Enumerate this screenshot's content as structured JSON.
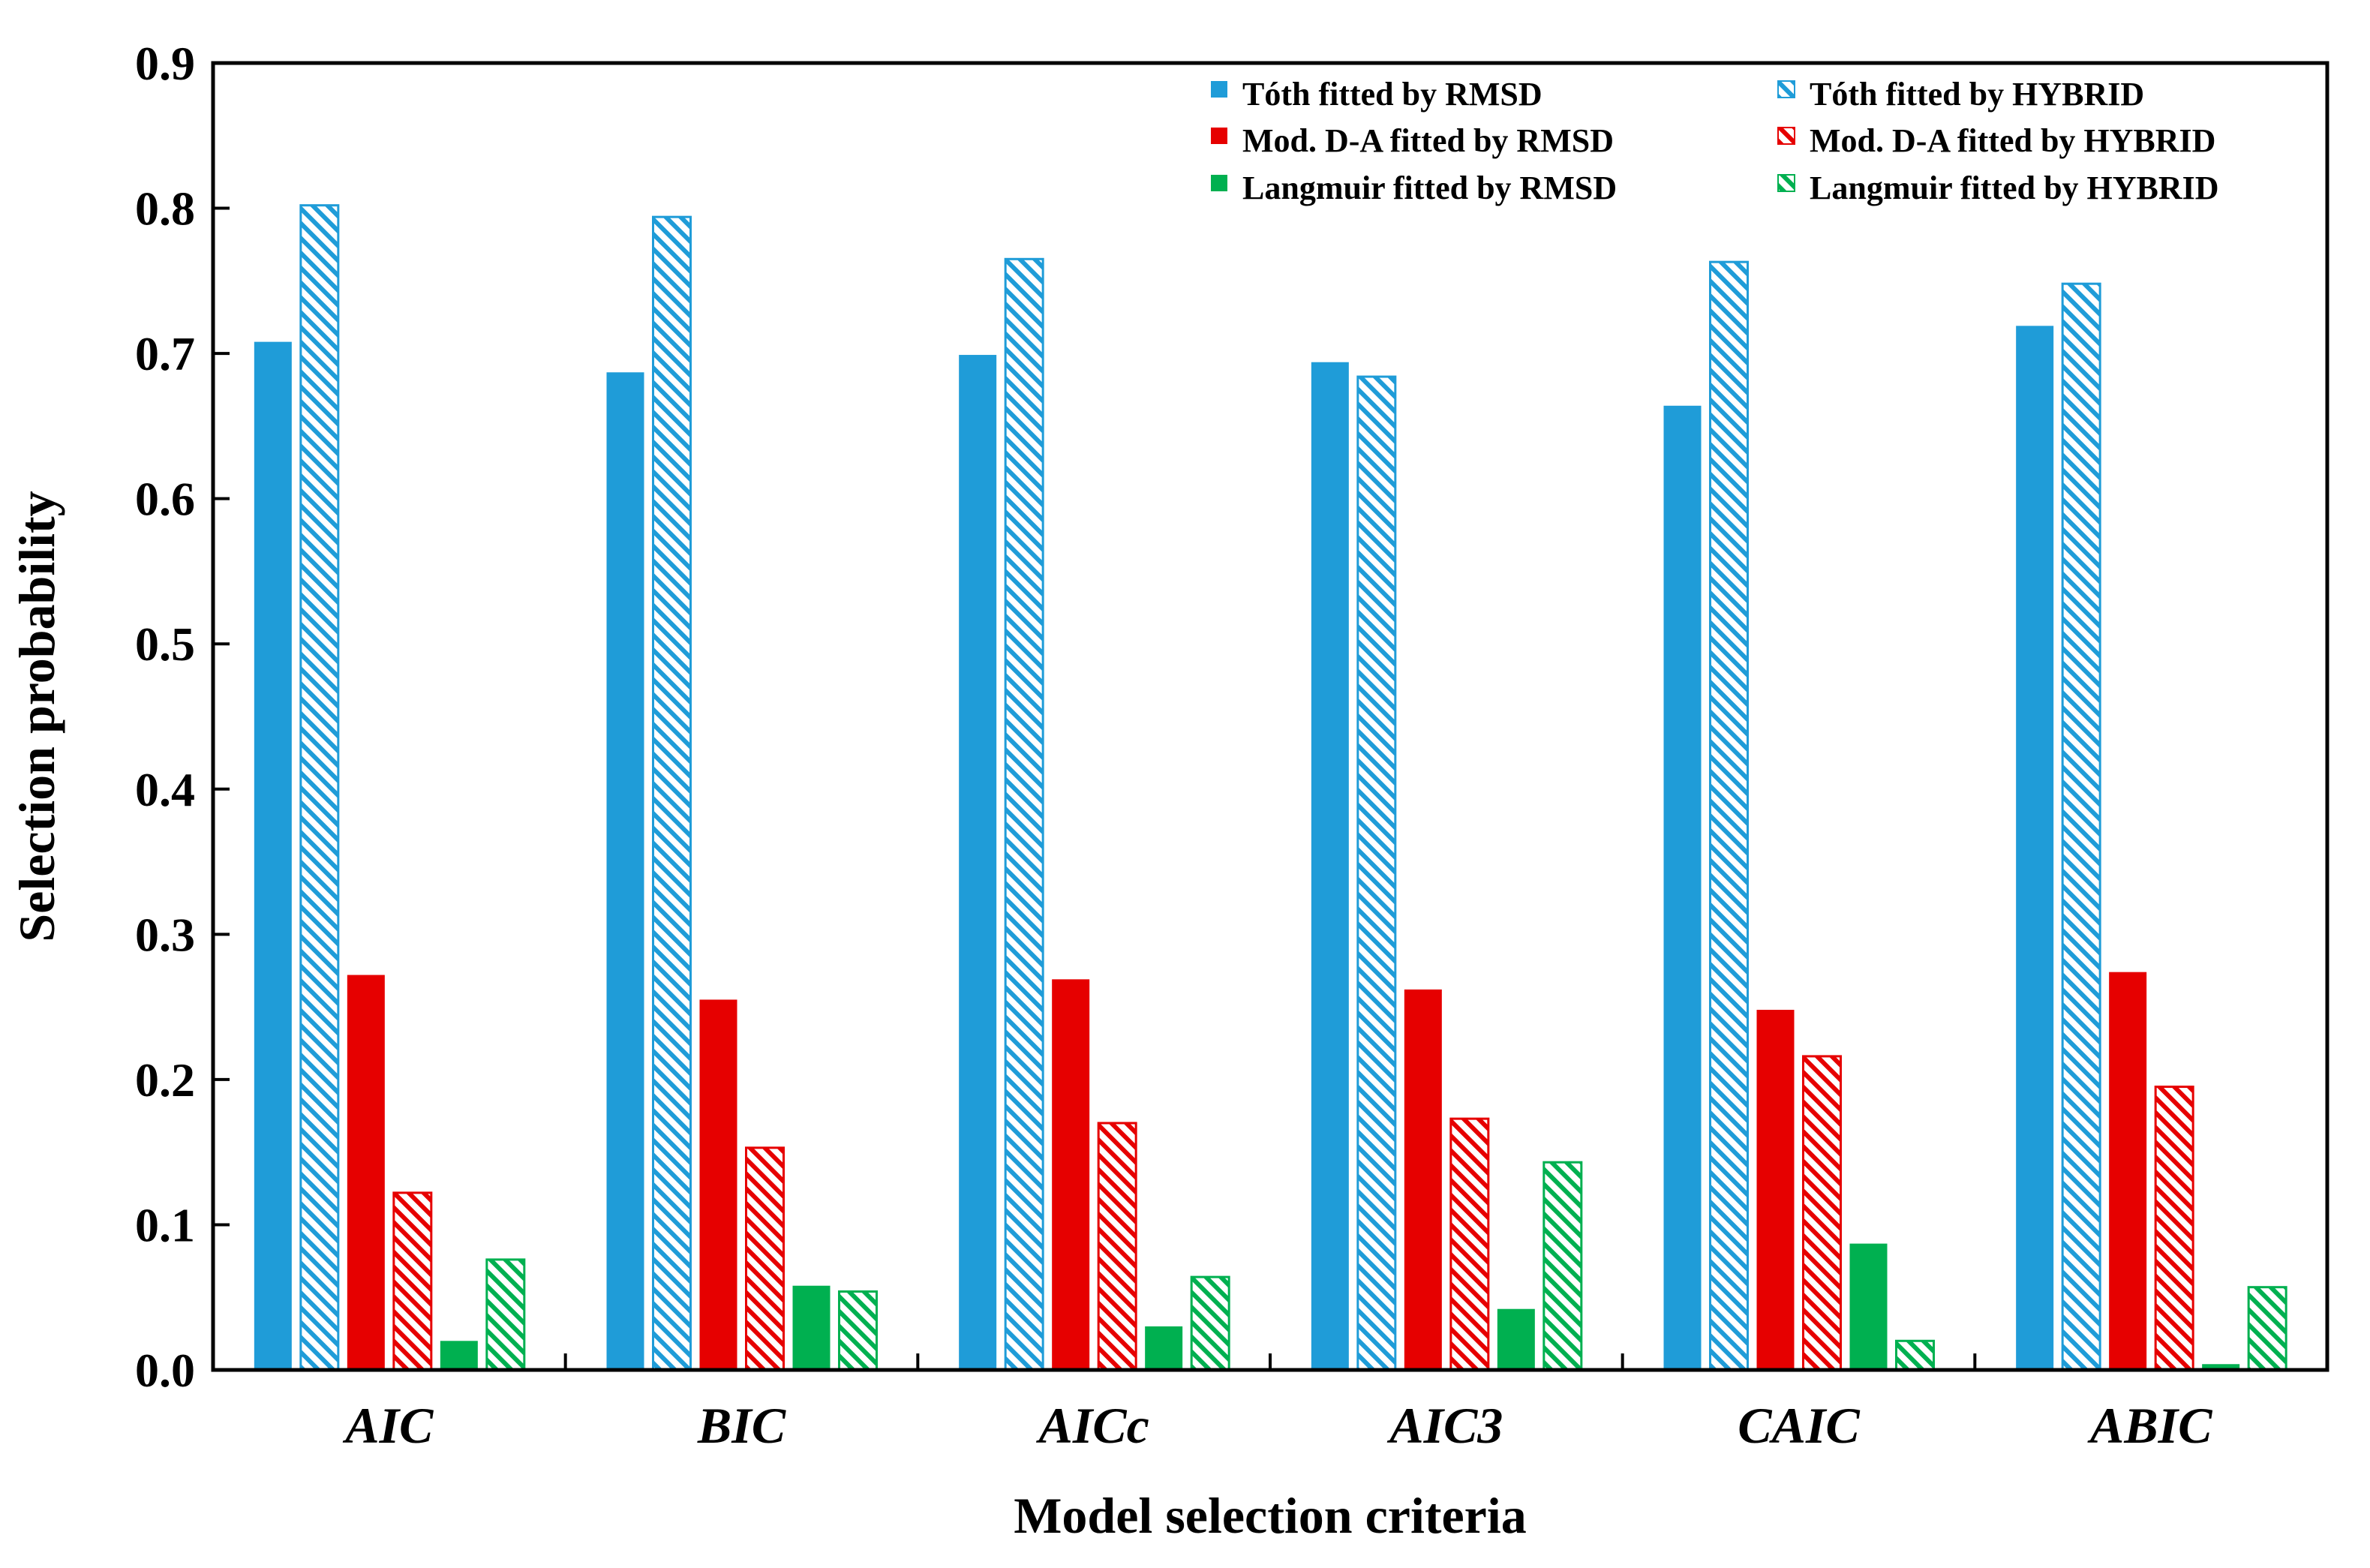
{
  "chart_data": {
    "type": "bar",
    "title": "",
    "xlabel": "Model selection criteria",
    "ylabel": "Selection probability",
    "ylim": [
      0.0,
      0.9
    ],
    "yticks": [
      "0.0",
      "0.1",
      "0.2",
      "0.3",
      "0.4",
      "0.5",
      "0.6",
      "0.7",
      "0.8",
      "0.9"
    ],
    "categories": [
      "AIC",
      "BIC",
      "AICc",
      "AIC3",
      "CAIC",
      "ABIC"
    ],
    "legend_placement": "top-right",
    "series": [
      {
        "name": "Tóth fitted by RMSD",
        "color": "#1f9cd8",
        "pattern": "solid",
        "values": [
          0.708,
          0.687,
          0.699,
          0.694,
          0.664,
          0.719
        ]
      },
      {
        "name": "Tóth fitted by HYBRID",
        "color": "#1f9cd8",
        "pattern": "hatched",
        "values": [
          0.802,
          0.794,
          0.765,
          0.684,
          0.763,
          0.748
        ]
      },
      {
        "name": "Mod. D-A fitted by RMSD",
        "color": "#e60000",
        "pattern": "solid",
        "values": [
          0.272,
          0.255,
          0.269,
          0.262,
          0.248,
          0.274
        ]
      },
      {
        "name": "Mod. D-A fitted by HYBRID",
        "color": "#e60000",
        "pattern": "hatched",
        "values": [
          0.122,
          0.153,
          0.17,
          0.173,
          0.216,
          0.195
        ]
      },
      {
        "name": "Langmuir fitted by RMSD",
        "color": "#00b050",
        "pattern": "solid",
        "values": [
          0.02,
          0.058,
          0.03,
          0.042,
          0.087,
          0.004
        ]
      },
      {
        "name": "Langmuir fitted by HYBRID",
        "color": "#00b050",
        "pattern": "hatched",
        "values": [
          0.076,
          0.054,
          0.064,
          0.143,
          0.02,
          0.057
        ]
      }
    ]
  }
}
